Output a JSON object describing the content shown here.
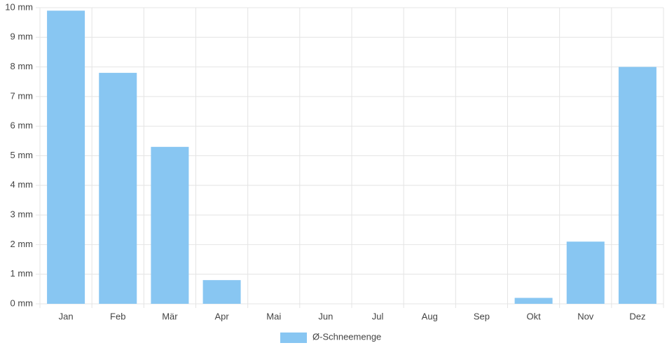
{
  "chart_data": {
    "type": "bar",
    "categories": [
      "Jan",
      "Feb",
      "Mär",
      "Apr",
      "Mai",
      "Jun",
      "Jul",
      "Aug",
      "Sep",
      "Okt",
      "Nov",
      "Dez"
    ],
    "series": [
      {
        "name": "Ø-Schneemenge",
        "color": "#88c6f2",
        "values": [
          9.9,
          7.8,
          5.3,
          0.8,
          0,
          0,
          0,
          0,
          0,
          0.2,
          2.1,
          8.0
        ]
      }
    ],
    "ylim": [
      0,
      10
    ],
    "yticks": [
      {
        "value": 0,
        "label": "0 mm"
      },
      {
        "value": 1,
        "label": "1 mm"
      },
      {
        "value": 2,
        "label": "2 mm"
      },
      {
        "value": 3,
        "label": "3 mm"
      },
      {
        "value": 4,
        "label": "4 mm"
      },
      {
        "value": 5,
        "label": "5 mm"
      },
      {
        "value": 6,
        "label": "6 mm"
      },
      {
        "value": 7,
        "label": "7 mm"
      },
      {
        "value": 8,
        "label": "8 mm"
      },
      {
        "value": 9,
        "label": "9 mm"
      },
      {
        "value": 10,
        "label": "10 mm"
      }
    ],
    "grid": true,
    "legend": "bottom"
  }
}
